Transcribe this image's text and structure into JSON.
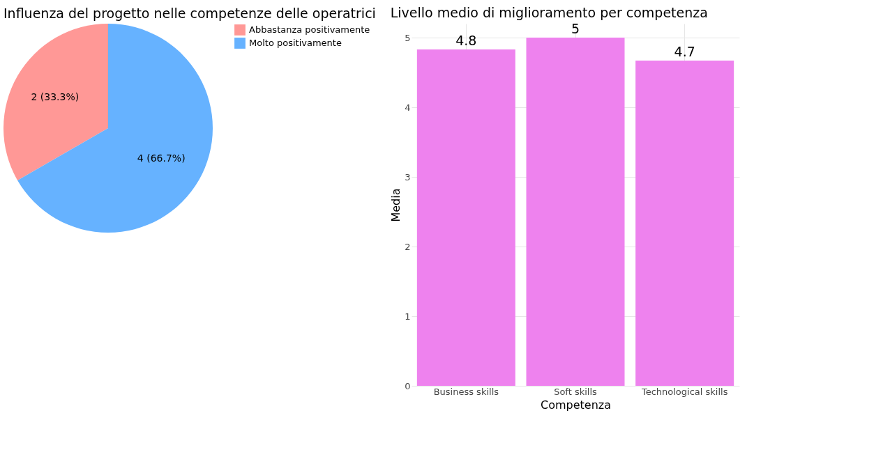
{
  "chart_data": [
    {
      "type": "pie",
      "title": "Influenza del progetto nelle competenze delle operatrici",
      "categories": [
        "Abbastanza positivamente",
        "Molto positivamente"
      ],
      "values": [
        2,
        4
      ],
      "colors": [
        "#ff9896",
        "#66b2ff"
      ],
      "value_labels": [
        "2 (33.3%)",
        "4 (66.7%)"
      ],
      "legend": "right"
    },
    {
      "type": "bar",
      "title": "Livello medio di miglioramento per competenza",
      "xlabel": "Competenza",
      "ylabel": "Media",
      "categories": [
        "Business skills",
        "Soft skills",
        "Technological skills"
      ],
      "values": [
        4.83,
        5,
        4.67
      ],
      "value_labels": [
        "4.8",
        "5",
        "4.7"
      ],
      "color": "#ee82ee",
      "ylim": [
        0,
        5.2
      ],
      "yticks": [
        0,
        1,
        2,
        3,
        4,
        5
      ],
      "grid": true
    }
  ]
}
